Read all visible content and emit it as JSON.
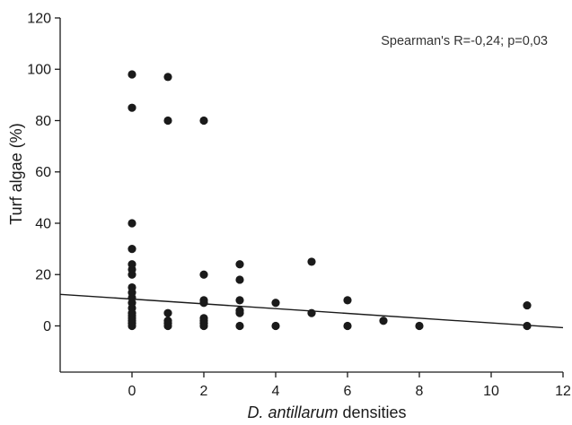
{
  "chart_data": {
    "type": "scatter",
    "title": "",
    "xlabel_italic": "D. antillarum",
    "xlabel_rest": " densities",
    "ylabel": "Turf algae (%)",
    "annotation": "Spearman's R=-0,24; p=0,03",
    "xlim": [
      -2,
      12
    ],
    "ylim": [
      -18,
      120
    ],
    "x_ticks": [
      0,
      2,
      4,
      6,
      8,
      10,
      12
    ],
    "y_ticks": [
      -20,
      0,
      20,
      40,
      60,
      80,
      100,
      120
    ],
    "y_tick_labels": [
      "",
      "0",
      "20",
      "40",
      "60",
      "80",
      "100",
      "120"
    ],
    "grid": false,
    "legend": "none",
    "point_color": "#1a1a1a",
    "points": [
      {
        "x": 0,
        "y": 98
      },
      {
        "x": 0,
        "y": 85
      },
      {
        "x": 0,
        "y": 40
      },
      {
        "x": 0,
        "y": 30
      },
      {
        "x": 0,
        "y": 24
      },
      {
        "x": 0,
        "y": 22
      },
      {
        "x": 0,
        "y": 20
      },
      {
        "x": 0,
        "y": 15
      },
      {
        "x": 0,
        "y": 13
      },
      {
        "x": 0,
        "y": 11
      },
      {
        "x": 0,
        "y": 9
      },
      {
        "x": 0,
        "y": 7
      },
      {
        "x": 0,
        "y": 5
      },
      {
        "x": 0,
        "y": 4
      },
      {
        "x": 0,
        "y": 3
      },
      {
        "x": 0,
        "y": 2
      },
      {
        "x": 0,
        "y": 1
      },
      {
        "x": 0,
        "y": 0
      },
      {
        "x": 1,
        "y": 97
      },
      {
        "x": 1,
        "y": 80
      },
      {
        "x": 1,
        "y": 5
      },
      {
        "x": 1,
        "y": 2
      },
      {
        "x": 1,
        "y": 1
      },
      {
        "x": 1,
        "y": 0
      },
      {
        "x": 2,
        "y": 80
      },
      {
        "x": 2,
        "y": 20
      },
      {
        "x": 2,
        "y": 10
      },
      {
        "x": 2,
        "y": 9
      },
      {
        "x": 2,
        "y": 3
      },
      {
        "x": 2,
        "y": 2
      },
      {
        "x": 2,
        "y": 1
      },
      {
        "x": 2,
        "y": 0
      },
      {
        "x": 3,
        "y": 24
      },
      {
        "x": 3,
        "y": 18
      },
      {
        "x": 3,
        "y": 10
      },
      {
        "x": 3,
        "y": 6
      },
      {
        "x": 3,
        "y": 5
      },
      {
        "x": 3,
        "y": 0
      },
      {
        "x": 4,
        "y": 9
      },
      {
        "x": 4,
        "y": 0
      },
      {
        "x": 5,
        "y": 25
      },
      {
        "x": 5,
        "y": 5
      },
      {
        "x": 6,
        "y": 10
      },
      {
        "x": 6,
        "y": 0
      },
      {
        "x": 7,
        "y": 2
      },
      {
        "x": 8,
        "y": 0
      },
      {
        "x": 11,
        "y": 8
      },
      {
        "x": 11,
        "y": 0
      }
    ],
    "trendline": {
      "x": [
        -2,
        12
      ],
      "y": [
        12.3,
        -0.7
      ],
      "color": "#1a1a1a"
    }
  }
}
